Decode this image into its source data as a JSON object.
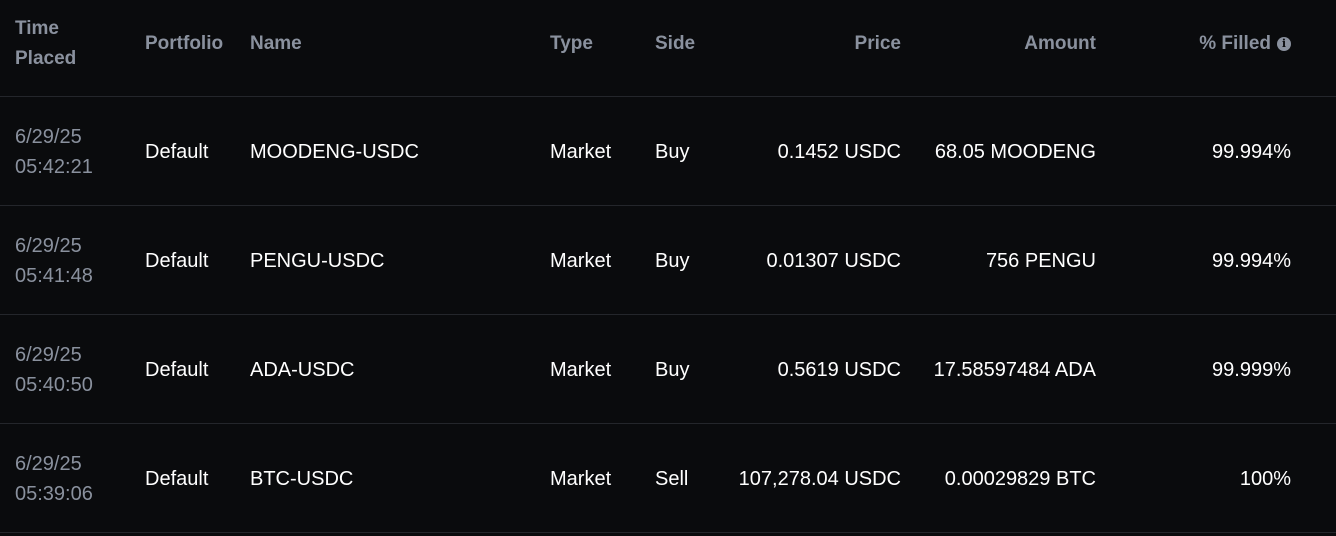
{
  "headers": {
    "time_line1": "Time",
    "time_line2": "Placed",
    "portfolio": "Portfolio",
    "name": "Name",
    "type": "Type",
    "side": "Side",
    "price": "Price",
    "amount": "Amount",
    "filled": "% Filled",
    "filled_info_icon": "info-icon"
  },
  "orders": [
    {
      "date": "6/29/25",
      "time": "05:42:21",
      "portfolio": "Default",
      "name": "MOODENG-USDC",
      "type": "Market",
      "side": "Buy",
      "price": "0.1452 USDC",
      "amount": "68.05 MOODENG",
      "filled": "99.994%"
    },
    {
      "date": "6/29/25",
      "time": "05:41:48",
      "portfolio": "Default",
      "name": "PENGU-USDC",
      "type": "Market",
      "side": "Buy",
      "price": "0.01307 USDC",
      "amount": "756 PENGU",
      "filled": "99.994%"
    },
    {
      "date": "6/29/25",
      "time": "05:40:50",
      "portfolio": "Default",
      "name": "ADA-USDC",
      "type": "Market",
      "side": "Buy",
      "price": "0.5619 USDC",
      "amount": "17.58597484 ADA",
      "filled": "99.999%"
    },
    {
      "date": "6/29/25",
      "time": "05:39:06",
      "portfolio": "Default",
      "name": "BTC-USDC",
      "type": "Market",
      "side": "Sell",
      "price": "107,278.04 USDC",
      "amount": "0.00029829 BTC",
      "filled": "100%"
    }
  ],
  "colors": {
    "background": "#0a0b0d",
    "header_text": "#8a919e",
    "body_text": "#ffffff",
    "divider": "#24262b"
  }
}
